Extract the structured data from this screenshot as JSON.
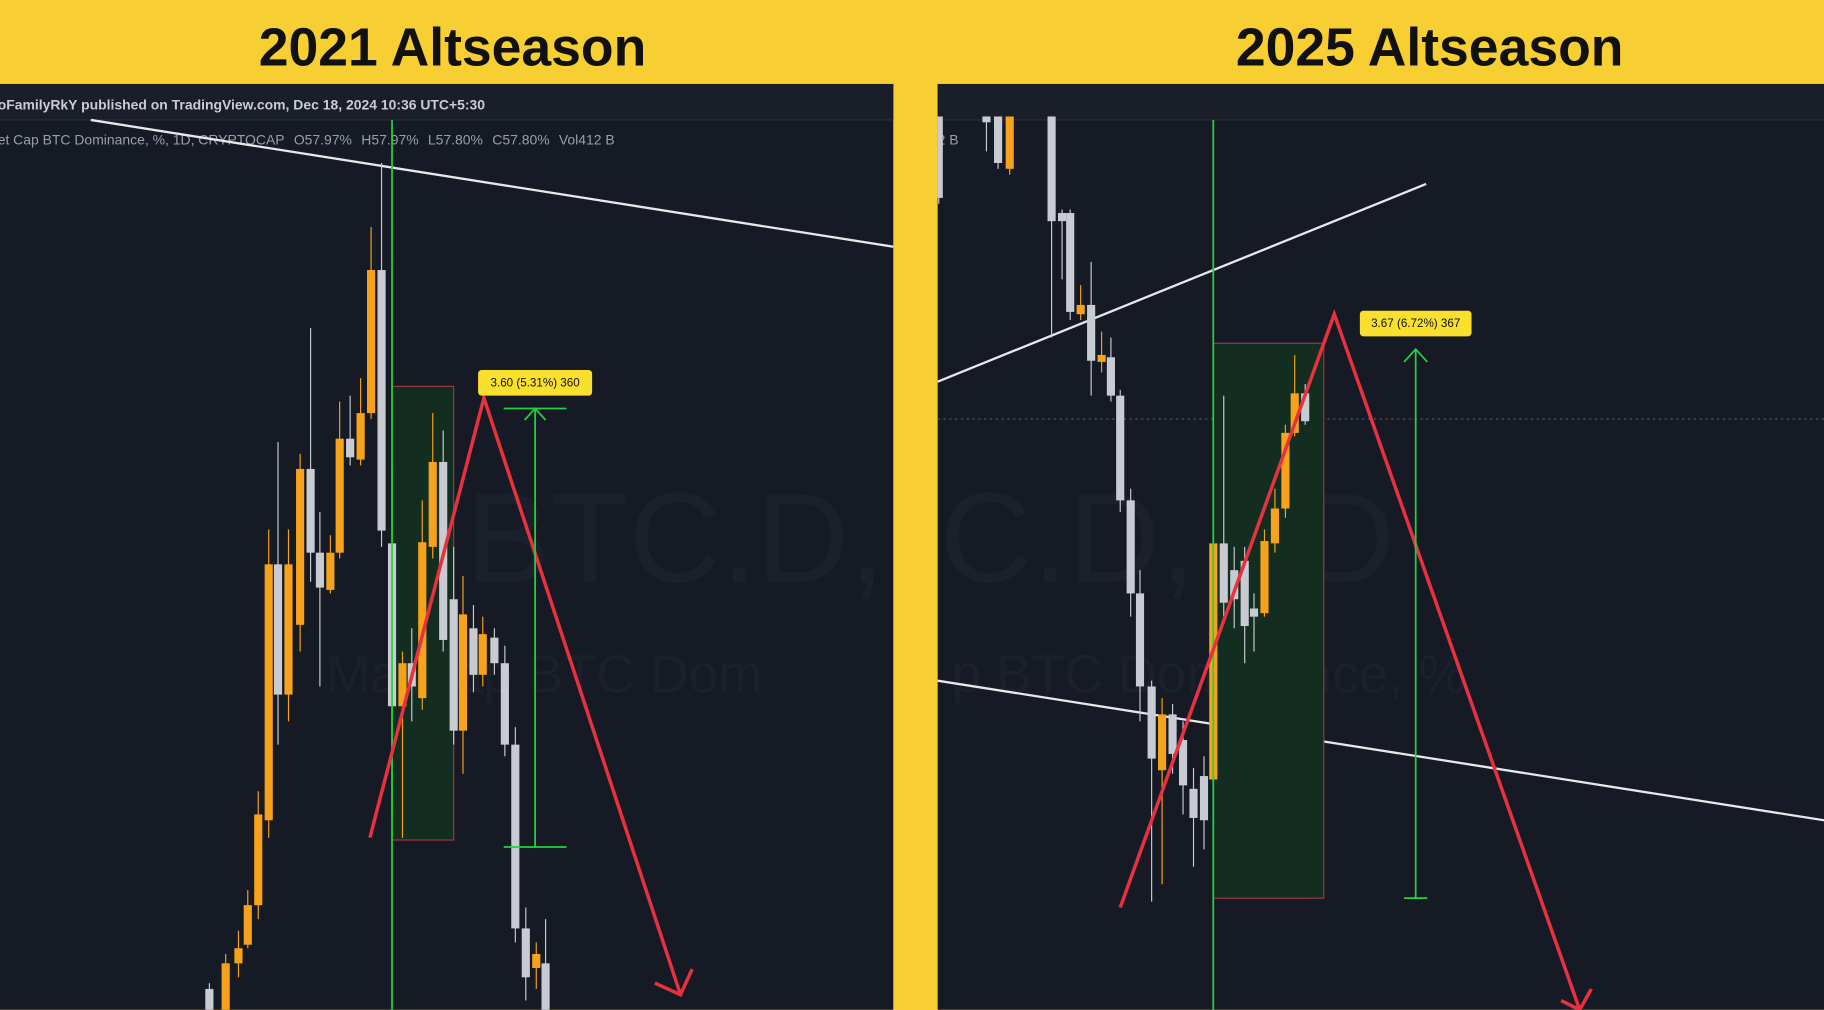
{
  "panels": [
    {
      "title": "2021 Altseason",
      "header": "oFamilyRkY published on TradingView.com, Dec 18, 2024 10:36 UTC+5:30",
      "legend": [
        "et Cap BTC Dominance, %, 1D, CRYPTOCAP",
        "O57.97%",
        "H57.97%",
        "L57.80%",
        "C57.80%",
        "Vol412 B"
      ],
      "watermark": [
        "BTC.D,",
        "Ma     Cap BTC Dom"
      ],
      "measure_label": "3.60 (5.31%) 360"
    },
    {
      "title": "2025 Altseason",
      "header": "",
      "legend": [
        "2 B"
      ],
      "watermark": [
        "C.D, 1D",
        "p BTC Dominance, %"
      ],
      "measure_label": "3.67 (6.72%) 367"
    }
  ]
}
